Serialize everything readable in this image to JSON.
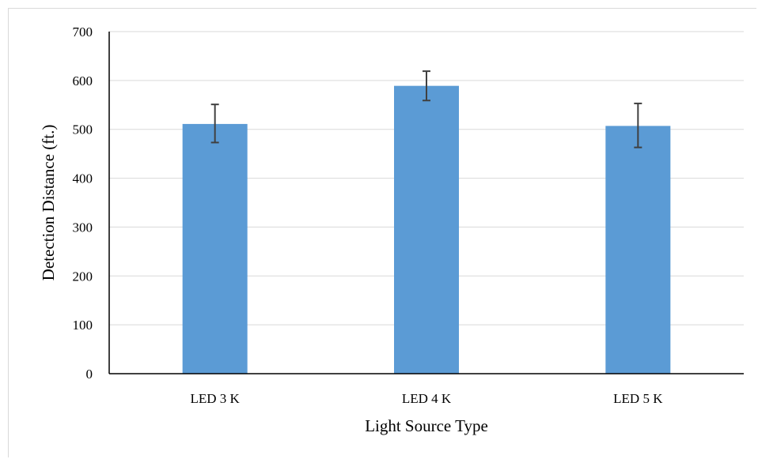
{
  "chart_data": {
    "type": "bar",
    "categories": [
      "LED 3 K",
      "LED 4 K",
      "LED 5 K"
    ],
    "values": [
      511,
      589,
      507
    ],
    "error_bars": [
      {
        "low": 473,
        "high": 551
      },
      {
        "low": 559,
        "high": 619
      },
      {
        "low": 463,
        "high": 553
      }
    ],
    "yticks": [
      "0",
      "100",
      "200",
      "300",
      "400",
      "500",
      "600",
      "700"
    ],
    "xlabel": "Light Source Type",
    "ylabel": "Detection Distance (ft.)",
    "ylim": [
      0,
      700
    ],
    "grid": true,
    "legend": "none",
    "colors": {
      "bar": "#5b9bd5",
      "grid": "#d9d9d9",
      "axis": "#000000",
      "error": "#404040"
    }
  }
}
